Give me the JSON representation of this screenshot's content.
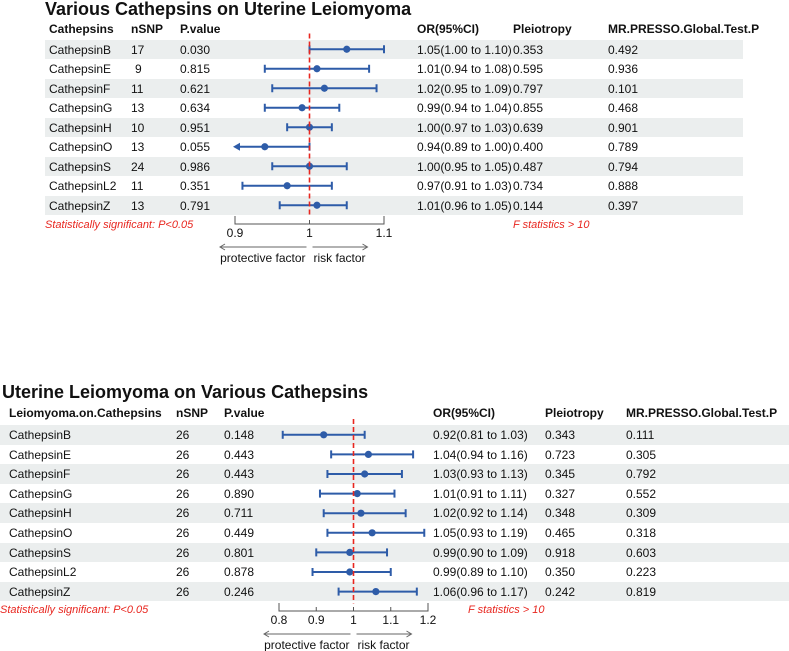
{
  "colors": {
    "point": "#2e5ca8",
    "ref_line": "#e8261f",
    "band": "#ebeeee"
  },
  "chart_data": [
    {
      "type": "forest",
      "title": "Various Cathepsins on Uterine Leiomyoma",
      "columns": [
        "Cathepsins",
        "nSNP",
        "P.value",
        "OR(95%CI)",
        "Pleiotropy",
        "MR.PRESSO.Global.Test.P"
      ],
      "rows": [
        {
          "name": "CathepsinB",
          "nsnp": "17",
          "p": "0.030",
          "or": 1.05,
          "lo": 1.0,
          "hi": 1.1,
          "or_text": "1.05(1.00 to 1.10)",
          "pleio": "0.353",
          "presso": "0.492"
        },
        {
          "name": "CathepsinE",
          "nsnp": "9",
          "p": "0.815",
          "or": 1.01,
          "lo": 0.94,
          "hi": 1.08,
          "or_text": "1.01(0.94 to 1.08)",
          "pleio": "0.595",
          "presso": "0.936"
        },
        {
          "name": "CathepsinF",
          "nsnp": "11",
          "p": "0.621",
          "or": 1.02,
          "lo": 0.95,
          "hi": 1.09,
          "or_text": "1.02(0.95 to 1.09)",
          "pleio": "0.797",
          "presso": "0.101"
        },
        {
          "name": "CathepsinG",
          "nsnp": "13",
          "p": "0.634",
          "or": 0.99,
          "lo": 0.94,
          "hi": 1.04,
          "or_text": "0.99(0.94 to 1.04)",
          "pleio": "0.855",
          "presso": "0.468"
        },
        {
          "name": "CathepsinH",
          "nsnp": "10",
          "p": "0.951",
          "or": 1.0,
          "lo": 0.97,
          "hi": 1.03,
          "or_text": "1.00(0.97 to 1.03)",
          "pleio": "0.639",
          "presso": "0.901"
        },
        {
          "name": "CathepsinO",
          "nsnp": "13",
          "p": "0.055",
          "or": 0.94,
          "lo": 0.89,
          "hi": 1.0,
          "or_text": "0.94(0.89 to 1.00)",
          "pleio": "0.400",
          "presso": "0.789"
        },
        {
          "name": "CathepsinS",
          "nsnp": "24",
          "p": "0.986",
          "or": 1.0,
          "lo": 0.95,
          "hi": 1.05,
          "or_text": "1.00(0.95 to 1.05)",
          "pleio": "0.487",
          "presso": "0.794"
        },
        {
          "name": "CathepsinL2",
          "nsnp": "11",
          "p": "0.351",
          "or": 0.97,
          "lo": 0.91,
          "hi": 1.03,
          "or_text": "0.97(0.91 to 1.03)",
          "pleio": "0.734",
          "presso": "0.888"
        },
        {
          "name": "CathepsinZ",
          "nsnp": "13",
          "p": "0.791",
          "or": 1.01,
          "lo": 0.96,
          "hi": 1.05,
          "or_text": "1.01(0.96 to 1.05)",
          "pleio": "0.144",
          "presso": "0.397"
        }
      ],
      "xlim": [
        0.9,
        1.1
      ],
      "ticks": [
        "0.9",
        "1",
        "1.1"
      ],
      "ref": 1,
      "note_left": "Statistically significant: P<0.05",
      "note_right": "F statistics > 10",
      "arrow_left": "protective factor",
      "arrow_right": "risk factor"
    },
    {
      "type": "forest",
      "title": "Uterine Leiomyoma on Various Cathepsins",
      "columns": [
        "Leiomyoma.on.Cathepsins",
        "nSNP",
        "P.value",
        "OR(95%CI)",
        "Pleiotropy",
        "MR.PRESSO.Global.Test.P"
      ],
      "rows": [
        {
          "name": "CathepsinB",
          "nsnp": "26",
          "p": "0.148",
          "or": 0.92,
          "lo": 0.81,
          "hi": 1.03,
          "or_text": "0.92(0.81 to 1.03)",
          "pleio": "0.343",
          "presso": "0.111"
        },
        {
          "name": "CathepsinE",
          "nsnp": "26",
          "p": "0.443",
          "or": 1.04,
          "lo": 0.94,
          "hi": 1.16,
          "or_text": "1.04(0.94 to 1.16)",
          "pleio": "0.723",
          "presso": "0.305"
        },
        {
          "name": "CathepsinF",
          "nsnp": "26",
          "p": "0.443",
          "or": 1.03,
          "lo": 0.93,
          "hi": 1.13,
          "or_text": "1.03(0.93 to 1.13)",
          "pleio": "0.345",
          "presso": "0.792"
        },
        {
          "name": "CathepsinG",
          "nsnp": "26",
          "p": "0.890",
          "or": 1.01,
          "lo": 0.91,
          "hi": 1.11,
          "or_text": "1.01(0.91 to 1.11)",
          "pleio": "0.327",
          "presso": "0.552"
        },
        {
          "name": "CathepsinH",
          "nsnp": "26",
          "p": "0.711",
          "or": 1.02,
          "lo": 0.92,
          "hi": 1.14,
          "or_text": "1.02(0.92 to 1.14)",
          "pleio": "0.348",
          "presso": "0.309"
        },
        {
          "name": "CathepsinO",
          "nsnp": "26",
          "p": "0.449",
          "or": 1.05,
          "lo": 0.93,
          "hi": 1.19,
          "or_text": "1.05(0.93 to 1.19)",
          "pleio": "0.465",
          "presso": "0.318"
        },
        {
          "name": "CathepsinS",
          "nsnp": "26",
          "p": "0.801",
          "or": 0.99,
          "lo": 0.9,
          "hi": 1.09,
          "or_text": "0.99(0.90 to 1.09)",
          "pleio": "0.918",
          "presso": "0.603"
        },
        {
          "name": "CathepsinL2",
          "nsnp": "26",
          "p": "0.878",
          "or": 0.99,
          "lo": 0.89,
          "hi": 1.1,
          "or_text": "0.99(0.89 to 1.10)",
          "pleio": "0.350",
          "presso": "0.223"
        },
        {
          "name": "CathepsinZ",
          "nsnp": "26",
          "p": "0.246",
          "or": 1.06,
          "lo": 0.96,
          "hi": 1.17,
          "or_text": "1.06(0.96 to 1.17)",
          "pleio": "0.242",
          "presso": "0.819"
        }
      ],
      "xlim": [
        0.8,
        1.2
      ],
      "ticks": [
        "0.8",
        "0.9",
        "1",
        "1.1",
        "1.2"
      ],
      "ref": 1,
      "note_left": "Statistically significant: P<0.05",
      "note_right": "F statistics > 10",
      "arrow_left": "protective factor",
      "arrow_right": "risk factor"
    }
  ]
}
